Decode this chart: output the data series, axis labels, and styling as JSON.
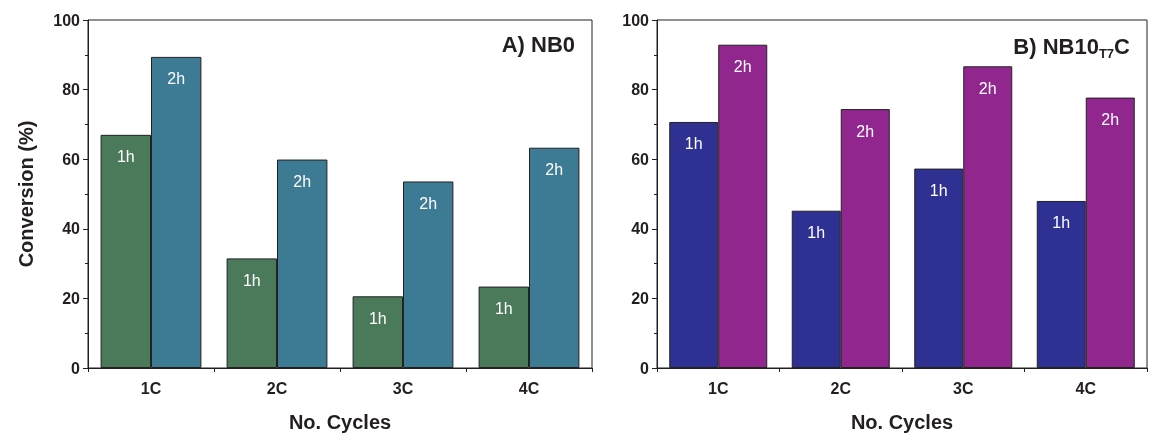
{
  "chart_data": [
    {
      "type": "bar",
      "title": "A) NB0",
      "xlabel": "No. Cycles",
      "ylabel": "Conversion (%)",
      "categories": [
        "1C",
        "2C",
        "3C",
        "4C"
      ],
      "series": [
        {
          "name": "1h",
          "color": "#4a7a5a",
          "values": [
            67.0,
            31.5,
            20.6,
            23.4
          ]
        },
        {
          "name": "2h",
          "color": "#3d7a94",
          "values": [
            89.4,
            59.9,
            53.6,
            63.3
          ]
        }
      ],
      "ylim": [
        0,
        100
      ],
      "yticks": [
        0,
        20,
        40,
        60,
        80,
        100
      ],
      "grid": false,
      "legend": false
    },
    {
      "type": "bar",
      "title": "B) NB10$_{T7}$C",
      "xlabel": "No. Cycles",
      "categories": [
        "1C",
        "2C",
        "3C",
        "4C"
      ],
      "series": [
        {
          "name": "1h",
          "color": "#2e3192",
          "values": [
            70.7,
            45.2,
            57.3,
            48.0
          ]
        },
        {
          "name": "2h",
          "color": "#91268f",
          "values": [
            92.9,
            74.4,
            86.7,
            77.7
          ]
        }
      ],
      "ylim": [
        0,
        100
      ],
      "yticks": [
        0,
        20,
        40,
        60,
        80,
        100
      ],
      "grid": false,
      "legend": false
    }
  ]
}
